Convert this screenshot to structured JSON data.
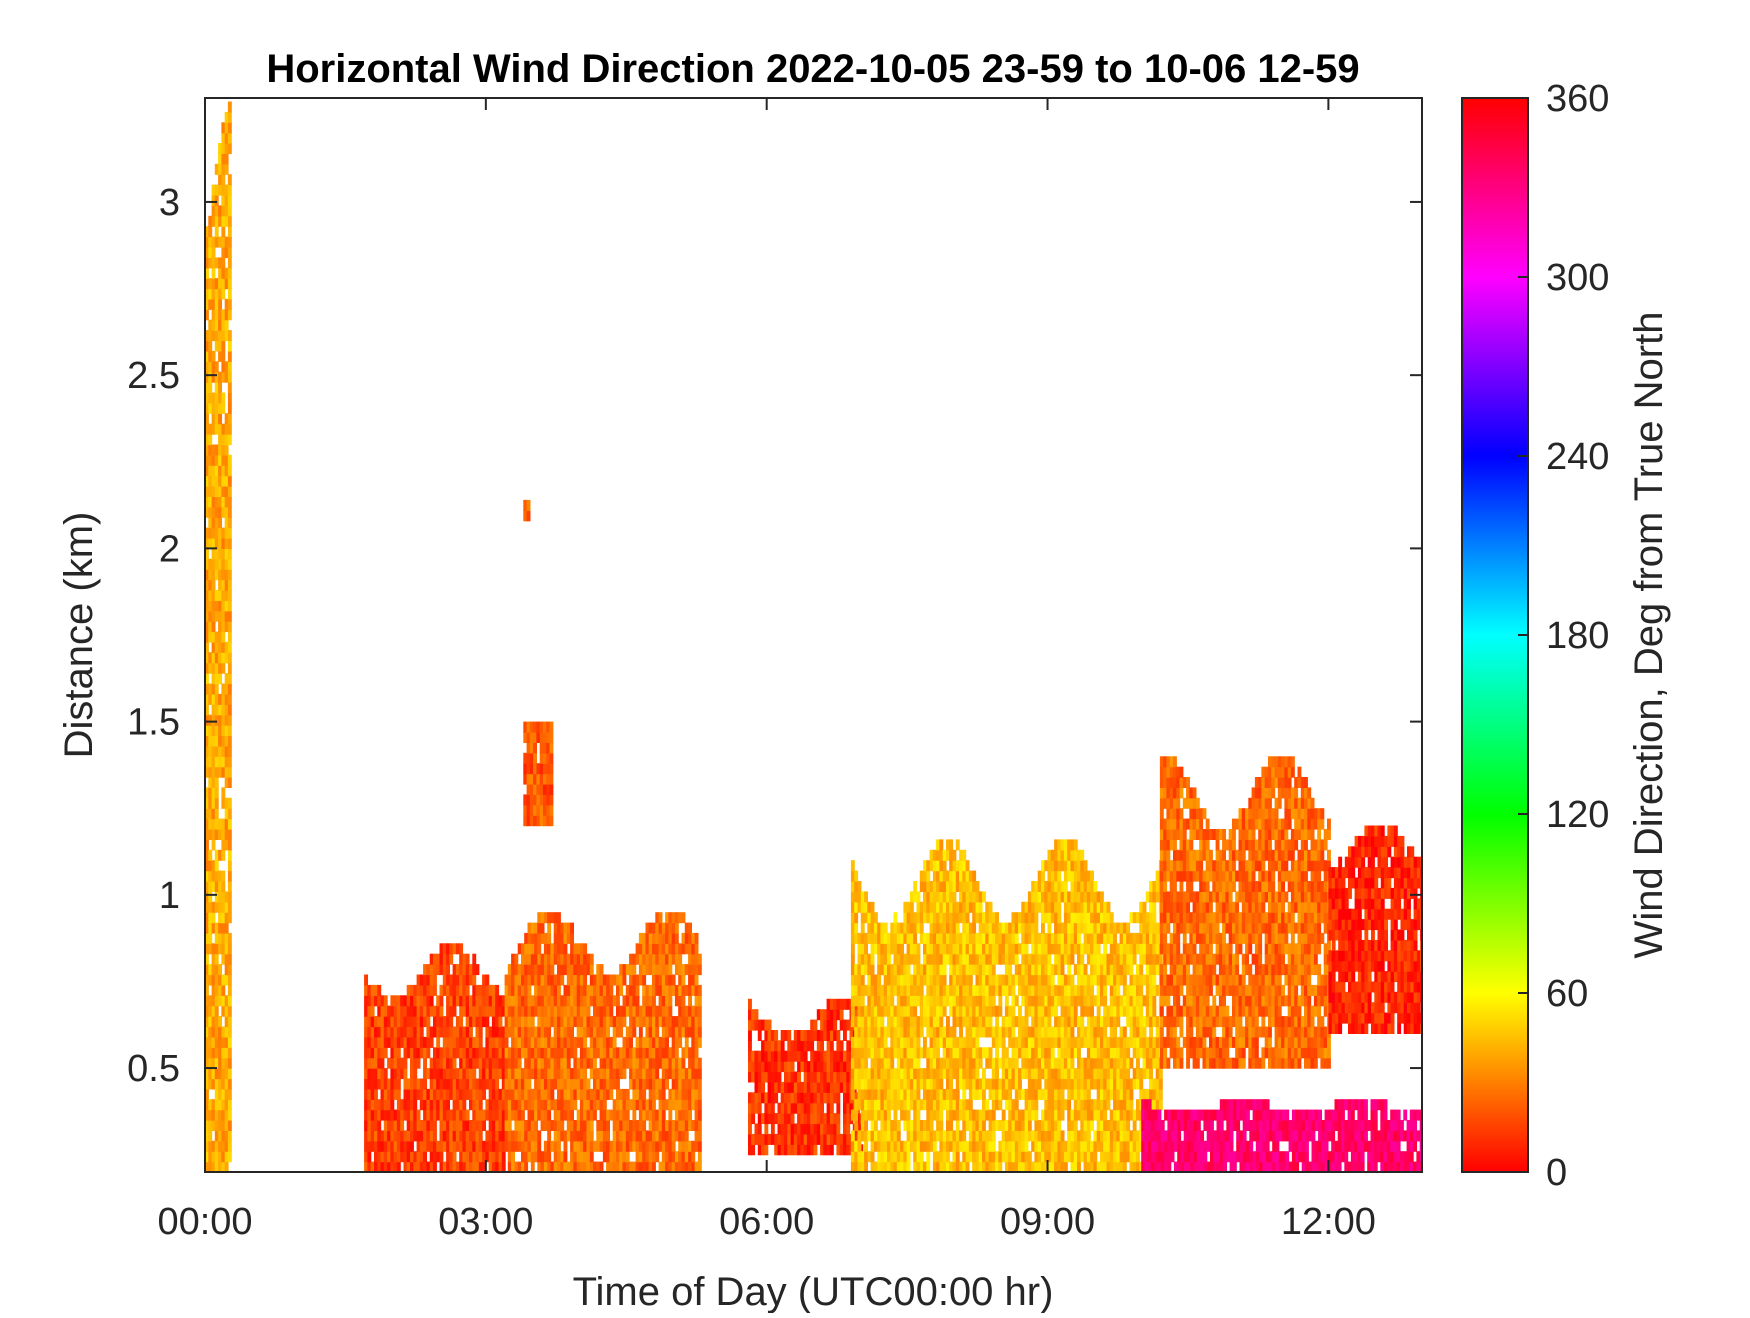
{
  "chart_data": {
    "type": "heatmap",
    "title": "Horizontal Wind Direction 2022-10-05 23-59 to 10-06 12-59",
    "xlabel": "Time of Day (UTC00:00 hr)",
    "ylabel": "Distance (km)",
    "colorbar_label": "Wind Direction, Deg from True North",
    "xlim": [
      0,
      13
    ],
    "ylim": [
      0.2,
      3.3
    ],
    "x_ticks": [
      {
        "value": 0,
        "label": "00:00"
      },
      {
        "value": 3,
        "label": "03:00"
      },
      {
        "value": 6,
        "label": "06:00"
      },
      {
        "value": 9,
        "label": "09:00"
      },
      {
        "value": 12,
        "label": "12:00"
      }
    ],
    "y_ticks": [
      {
        "value": 0.5,
        "label": "0.5"
      },
      {
        "value": 1.0,
        "label": "1"
      },
      {
        "value": 1.5,
        "label": "1.5"
      },
      {
        "value": 2.0,
        "label": "2"
      },
      {
        "value": 2.5,
        "label": "2.5"
      },
      {
        "value": 3.0,
        "label": "3"
      }
    ],
    "colorbar": {
      "range": [
        0,
        360
      ],
      "ticks": [
        {
          "value": 0,
          "label": "0"
        },
        {
          "value": 60,
          "label": "60"
        },
        {
          "value": 120,
          "label": "120"
        },
        {
          "value": 180,
          "label": "180"
        },
        {
          "value": 240,
          "label": "240"
        },
        {
          "value": 300,
          "label": "300"
        },
        {
          "value": 360,
          "label": "360"
        }
      ],
      "colormap": [
        {
          "value": 0,
          "color": "#ff0000"
        },
        {
          "value": 60,
          "color": "#ffff00"
        },
        {
          "value": 120,
          "color": "#00ff00"
        },
        {
          "value": 180,
          "color": "#00ffff"
        },
        {
          "value": 240,
          "color": "#0000ff"
        },
        {
          "value": 300,
          "color": "#ff00ff"
        },
        {
          "value": 360,
          "color": "#ff0000"
        }
      ]
    },
    "grid": false,
    "data_regions": [
      {
        "desc": "near-surface streak",
        "t": [
          0.0,
          0.25
        ],
        "h": [
          0.2,
          3.3
        ],
        "deg": 40
      },
      {
        "desc": "early morning plume",
        "t": [
          1.7,
          3.2
        ],
        "h": [
          0.2,
          0.85
        ],
        "deg": 15
      },
      {
        "desc": "mid-morning plume",
        "t": [
          3.2,
          5.3
        ],
        "h": [
          0.2,
          0.95
        ],
        "deg": 25
      },
      {
        "desc": "isolated patch",
        "t": [
          3.4,
          3.7
        ],
        "h": [
          1.2,
          1.5
        ],
        "deg": 20
      },
      {
        "desc": "small patch",
        "t": [
          3.4,
          3.47
        ],
        "h": [
          2.08,
          2.13
        ],
        "deg": 25
      },
      {
        "desc": "lower layer",
        "t": [
          5.8,
          7.0
        ],
        "h": [
          0.25,
          0.7
        ],
        "deg": 12
      },
      {
        "desc": "daytime layer",
        "t": [
          6.9,
          10.2
        ],
        "h": [
          0.2,
          1.15
        ],
        "deg": 45
      },
      {
        "desc": "daytime layer late",
        "t": [
          10.2,
          12.0
        ],
        "h": [
          0.5,
          1.4
        ],
        "deg": 25
      },
      {
        "desc": "afternoon top",
        "t": [
          12.0,
          13.0
        ],
        "h": [
          0.6,
          1.2
        ],
        "deg": 8
      },
      {
        "desc": "surface patches",
        "t": [
          10.0,
          13.0
        ],
        "h": [
          0.2,
          0.4
        ],
        "deg": 335
      }
    ]
  }
}
